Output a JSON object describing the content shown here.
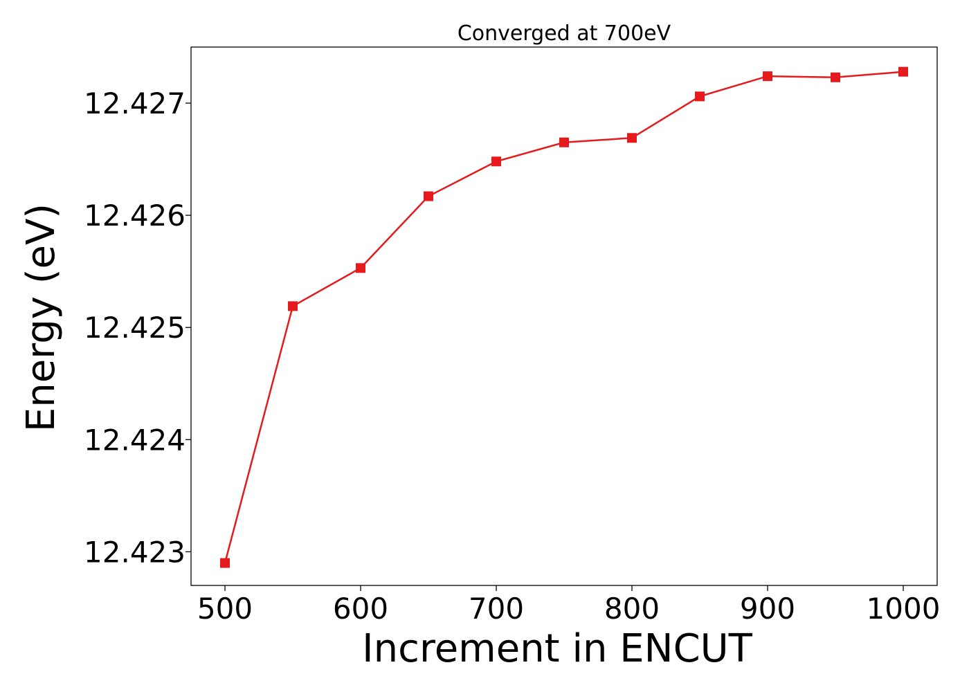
{
  "chart_data": {
    "type": "line",
    "title": "Converged at 700eV",
    "xlabel": "Increment in ENCUT",
    "ylabel": "Energy (eV)",
    "xlim": [
      475,
      1025
    ],
    "ylim": [
      12.4227,
      12.4275
    ],
    "x_ticks": [
      500,
      600,
      700,
      800,
      900,
      1000
    ],
    "x_tick_labels": [
      "500",
      "600",
      "700",
      "800",
      "900",
      "1000"
    ],
    "y_ticks": [
      12.423,
      12.424,
      12.425,
      12.426,
      12.427
    ],
    "y_tick_labels": [
      "12.423",
      "12.424",
      "12.425",
      "12.426",
      "12.427"
    ],
    "grid": false,
    "series": [
      {
        "color": "#e41a1c",
        "marker": "square",
        "x": [
          500,
          550,
          600,
          650,
          700,
          750,
          800,
          850,
          900,
          950,
          1000
        ],
        "y": [
          12.4229,
          12.42519,
          12.42553,
          12.42617,
          12.42648,
          12.42665,
          12.42669,
          12.42706,
          12.42724,
          12.42723,
          12.42728
        ]
      }
    ]
  }
}
